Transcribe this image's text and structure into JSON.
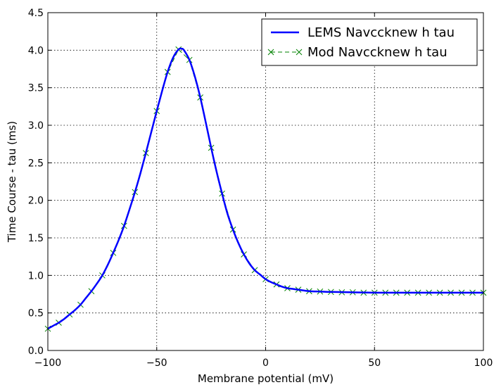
{
  "chart_data": {
    "type": "line",
    "xlabel": "Membrane potential (mV)",
    "ylabel": "Time Course - tau (ms)",
    "xlim": [
      -100,
      100
    ],
    "ylim": [
      0.0,
      4.5
    ],
    "x_ticks": [
      "−100",
      "−50",
      "0",
      "50",
      "100"
    ],
    "x_tick_values": [
      -100,
      -50,
      0,
      50,
      100
    ],
    "y_ticks": [
      "0.0",
      "0.5",
      "1.0",
      "1.5",
      "2.0",
      "2.5",
      "3.0",
      "3.5",
      "4.0",
      "4.5"
    ],
    "y_tick_values": [
      0.0,
      0.5,
      1.0,
      1.5,
      2.0,
      2.5,
      3.0,
      3.5,
      4.0,
      4.5
    ],
    "grid": true,
    "legend_position": "top-right",
    "series": [
      {
        "name": "LEMS Navccknew h tau",
        "color": "#0000ff",
        "style": "solid line",
        "x": [
          -100,
          -97.5,
          -95,
          -92.5,
          -90,
          -87.5,
          -85,
          -82.5,
          -80,
          -77.5,
          -75,
          -72.5,
          -70,
          -67.5,
          -65,
          -62.5,
          -60,
          -57.5,
          -55,
          -52.5,
          -50,
          -47.5,
          -45,
          -42.5,
          -40,
          -38.5,
          -37.5,
          -35,
          -32.5,
          -30,
          -27.5,
          -25,
          -22.5,
          -20,
          -17.5,
          -15,
          -12.5,
          -10,
          -7.5,
          -5,
          -2.5,
          0,
          2.5,
          5,
          7.5,
          10,
          12.5,
          15,
          20,
          25,
          30,
          40,
          50,
          60,
          70,
          80,
          90,
          100
        ],
        "y": [
          0.29,
          0.33,
          0.37,
          0.42,
          0.48,
          0.54,
          0.61,
          0.7,
          0.79,
          0.89,
          1.0,
          1.14,
          1.3,
          1.47,
          1.66,
          1.88,
          2.11,
          2.36,
          2.63,
          2.91,
          3.19,
          3.46,
          3.71,
          3.9,
          4.01,
          4.02,
          4.0,
          3.87,
          3.65,
          3.37,
          3.04,
          2.7,
          2.38,
          2.09,
          1.82,
          1.61,
          1.43,
          1.28,
          1.16,
          1.07,
          1.01,
          0.95,
          0.91,
          0.88,
          0.85,
          0.83,
          0.82,
          0.81,
          0.79,
          0.785,
          0.78,
          0.775,
          0.77,
          0.77,
          0.77,
          0.77,
          0.77,
          0.77
        ]
      },
      {
        "name": "Mod Navccknew h tau",
        "color": "#008000",
        "style": "dashed line with x markers",
        "x": [
          -100,
          -95,
          -90,
          -85,
          -80,
          -75,
          -70,
          -65,
          -60,
          -55,
          -50,
          -45,
          -40,
          -35,
          -30,
          -25,
          -20,
          -15,
          -10,
          -5,
          0,
          5,
          10,
          15,
          20,
          25,
          30,
          35,
          40,
          45,
          50,
          55,
          60,
          65,
          70,
          75,
          80,
          85,
          90,
          95,
          100
        ],
        "y": [
          0.29,
          0.37,
          0.48,
          0.61,
          0.79,
          1.0,
          1.3,
          1.66,
          2.11,
          2.63,
          3.19,
          3.71,
          4.01,
          3.87,
          3.37,
          2.7,
          2.09,
          1.61,
          1.28,
          1.07,
          0.95,
          0.88,
          0.83,
          0.81,
          0.79,
          0.785,
          0.78,
          0.775,
          0.775,
          0.77,
          0.77,
          0.77,
          0.77,
          0.77,
          0.77,
          0.77,
          0.77,
          0.77,
          0.77,
          0.77,
          0.77
        ]
      }
    ]
  }
}
